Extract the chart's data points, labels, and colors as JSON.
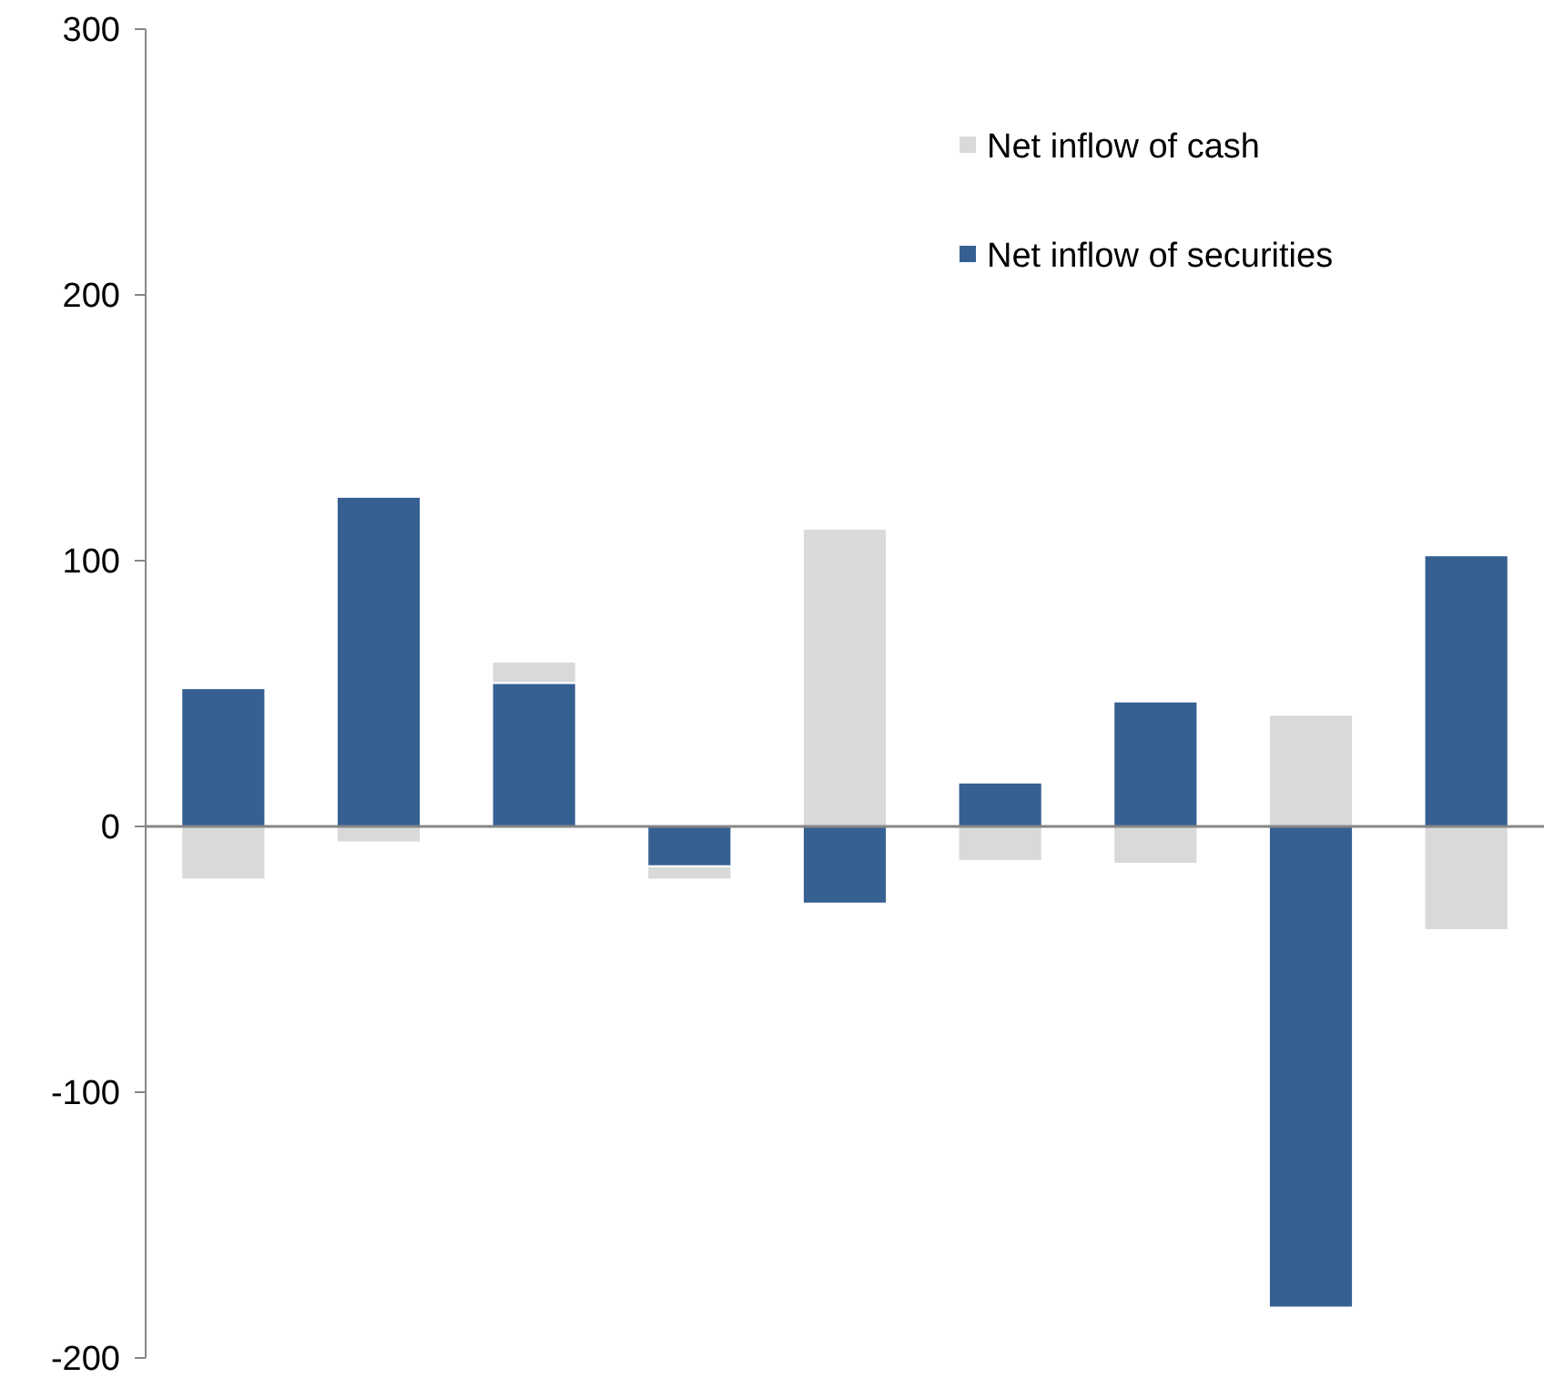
{
  "chart_data": {
    "type": "bar",
    "stacked": true,
    "categories": [
      null,
      null,
      null,
      null,
      null,
      null,
      null,
      null,
      null
    ],
    "series": [
      {
        "name": "Net inflow of securities",
        "color": "#366092",
        "values": [
          52,
          124,
          54,
          -15,
          -29,
          16.5,
          47,
          -181,
          102
        ]
      },
      {
        "name": "Net inflow of cash",
        "color": "#d9d9d9",
        "values": [
          -20,
          -6,
          8,
          -5,
          112,
          -13,
          -14,
          42,
          -39
        ]
      }
    ],
    "ylim": [
      -200,
      300
    ],
    "yticks": [
      -200,
      -100,
      0,
      100,
      200,
      300
    ],
    "legend": "top right"
  }
}
